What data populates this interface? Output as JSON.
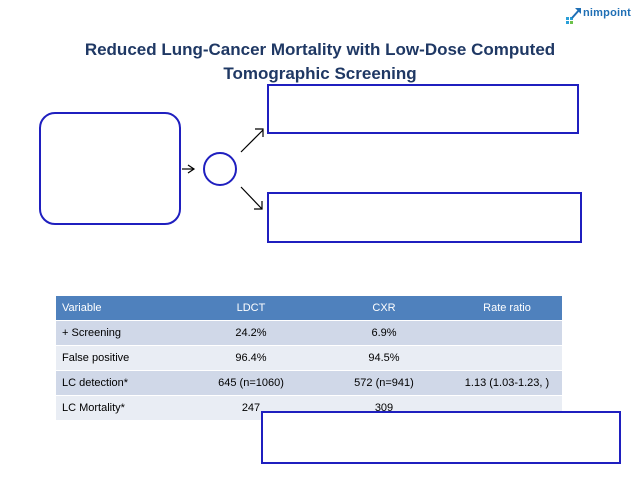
{
  "title_line1": "Reduced Lung-Cancer Mortality with Low-Dose Computed",
  "title_line2": "Tomographic Screening",
  "logo": {
    "text": "nimpoint",
    "icon": "arrow-cross-icon"
  },
  "table": {
    "headers": [
      "Variable",
      "LDCT",
      "CXR",
      "Rate ratio"
    ],
    "rows": [
      [
        "+ Screening",
        "24.2%",
        "6.9%",
        ""
      ],
      [
        "False positive",
        "96.4%",
        "94.5%",
        ""
      ],
      [
        "LC detection*",
        "645 (n=1060)",
        "572 (n=941)",
        "1.13 (1.03-1.23, )"
      ],
      [
        "LC Mortality*",
        "247",
        "309",
        ""
      ]
    ]
  },
  "colors": {
    "title": "#1f3864",
    "box_border": "#1f1fbf",
    "table_header": "#4f81bd",
    "table_band_dark": "#d0d8e8",
    "table_band_light": "#e9edf4"
  }
}
